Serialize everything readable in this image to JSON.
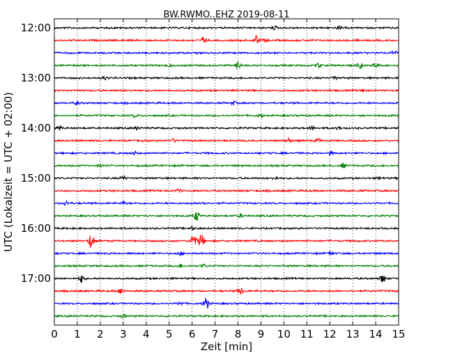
{
  "chart_data": {
    "type": "line",
    "title": "BW.RWMO..EHZ 2019-08-11",
    "xlabel": "Zeit  [min]",
    "ylabel": "UTC (Lokalzeit = UTC + 02:00)",
    "xlim": [
      0,
      15
    ],
    "x_ticks": [
      0,
      1,
      2,
      3,
      4,
      5,
      6,
      7,
      8,
      9,
      10,
      11,
      12,
      13,
      14,
      15
    ],
    "x_tick_labels": [
      "0",
      "1",
      "2",
      "3",
      "4",
      "5",
      "6",
      "7",
      "8",
      "9",
      "10",
      "11",
      "12",
      "13",
      "14",
      "15"
    ],
    "y_tick_labels": [
      "12:00",
      "13:00",
      "14:00",
      "15:00",
      "16:00",
      "17:00"
    ],
    "grid": "vertical dotted",
    "trace_interval_minutes": 15,
    "color_cycle": [
      "#000000",
      "#ff0000",
      "#0000ff",
      "#008000"
    ],
    "traces": [
      {
        "start": "12:00",
        "events": [
          {
            "t": 9.6,
            "amp": 1.0
          },
          {
            "t": 12.4,
            "amp": 1.0
          }
        ]
      },
      {
        "start": "12:15",
        "events": [
          {
            "t": 6.5,
            "amp": 2.0
          },
          {
            "t": 8.8,
            "amp": 3.0
          },
          {
            "t": 9.2,
            "amp": 1.0
          }
        ]
      },
      {
        "start": "12:30",
        "events": [
          {
            "t": 14.8,
            "amp": 1.0
          }
        ]
      },
      {
        "start": "12:45",
        "events": [
          {
            "t": 5.0,
            "amp": 1.0
          },
          {
            "t": 8.0,
            "amp": 2.5
          },
          {
            "t": 11.5,
            "amp": 1.5
          },
          {
            "t": 13.3,
            "amp": 2.0
          },
          {
            "t": 14.0,
            "amp": 1.5
          }
        ]
      },
      {
        "start": "13:00",
        "events": [
          {
            "t": 2.2,
            "amp": 1.0
          },
          {
            "t": 12.2,
            "amp": 1.0
          }
        ]
      },
      {
        "start": "13:15",
        "events": [
          {
            "t": 13.5,
            "amp": 1.0
          }
        ]
      },
      {
        "start": "13:30",
        "events": [
          {
            "t": 1.0,
            "amp": 1.0
          },
          {
            "t": 7.8,
            "amp": 1.0
          }
        ]
      },
      {
        "start": "13:45",
        "events": [
          {
            "t": 3.5,
            "amp": 1.0
          },
          {
            "t": 9.0,
            "amp": 1.0
          }
        ]
      },
      {
        "start": "14:00",
        "events": [
          {
            "t": 0.2,
            "amp": 1.5
          },
          {
            "t": 3.6,
            "amp": 1.0
          },
          {
            "t": 11.2,
            "amp": 1.0
          },
          {
            "t": 12.4,
            "amp": 1.0
          }
        ]
      },
      {
        "start": "14:15",
        "events": [
          {
            "t": 5.2,
            "amp": 1.0
          },
          {
            "t": 10.2,
            "amp": 1.5
          },
          {
            "t": 11.5,
            "amp": 1.0
          }
        ]
      },
      {
        "start": "14:30",
        "events": [
          {
            "t": 3.5,
            "amp": 1.0
          },
          {
            "t": 12.0,
            "amp": 1.0
          }
        ]
      },
      {
        "start": "14:45",
        "events": [
          {
            "t": 2.0,
            "amp": 1.0
          },
          {
            "t": 12.6,
            "amp": 1.5
          }
        ]
      },
      {
        "start": "15:00",
        "events": [
          {
            "t": 3.0,
            "amp": 1.5
          },
          {
            "t": 9.6,
            "amp": 1.0
          },
          {
            "t": 14.2,
            "amp": 1.0
          }
        ]
      },
      {
        "start": "15:15",
        "events": [
          {
            "t": 5.4,
            "amp": 1.0
          }
        ]
      },
      {
        "start": "15:30",
        "events": [
          {
            "t": 0.5,
            "amp": 1.5
          },
          {
            "t": 3.0,
            "amp": 1.0
          },
          {
            "t": 6.5,
            "amp": 1.0
          }
        ]
      },
      {
        "start": "15:45",
        "events": [
          {
            "t": 6.2,
            "amp": 3.5
          },
          {
            "t": 8.1,
            "amp": 1.0
          }
        ]
      },
      {
        "start": "16:00",
        "events": [
          {
            "t": 6.0,
            "amp": 1.0
          }
        ]
      },
      {
        "start": "16:15",
        "events": [
          {
            "t": 1.6,
            "amp": 5.0
          },
          {
            "t": 6.05,
            "amp": 5.0
          },
          {
            "t": 6.4,
            "amp": 5.0
          }
        ]
      },
      {
        "start": "16:30",
        "events": [
          {
            "t": 5.5,
            "amp": 1.0
          },
          {
            "t": 12.0,
            "amp": 1.0
          }
        ]
      },
      {
        "start": "16:45",
        "events": [
          {
            "t": 5.5,
            "amp": 1.0
          },
          {
            "t": 6.5,
            "amp": 1.0
          }
        ]
      },
      {
        "start": "17:00",
        "events": [
          {
            "t": 1.2,
            "amp": 3.0
          },
          {
            "t": 14.3,
            "amp": 3.0
          }
        ]
      },
      {
        "start": "17:15",
        "events": [
          {
            "t": 2.9,
            "amp": 2.0
          },
          {
            "t": 8.1,
            "amp": 2.5
          }
        ]
      },
      {
        "start": "17:30",
        "events": [
          {
            "t": 6.6,
            "amp": 4.0
          },
          {
            "t": 5.5,
            "amp": 1.0
          }
        ]
      },
      {
        "start": "17:45",
        "events": [
          {
            "t": 3.0,
            "amp": 1.0
          }
        ]
      }
    ]
  }
}
